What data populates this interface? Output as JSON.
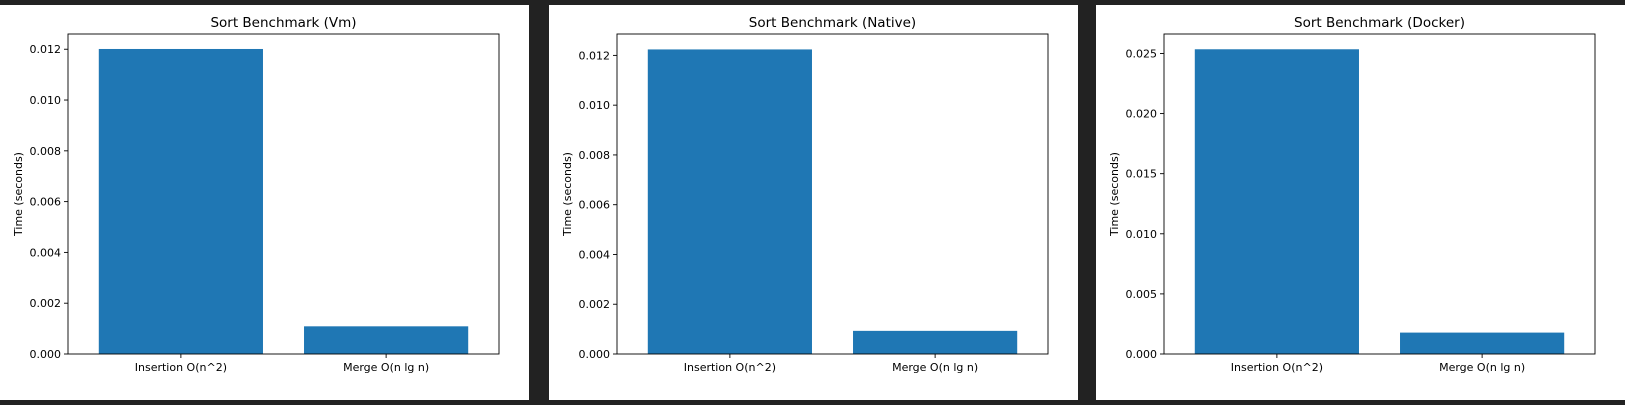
{
  "colors": {
    "bar": "#1f77b4",
    "background": "#222222"
  },
  "chart_data": [
    {
      "type": "bar",
      "title": "Sort Benchmark (Vm)",
      "xlabel": "",
      "ylabel": "Time (seconds)",
      "categories": [
        "Insertion O(n^2)",
        "Merge O(n lg n)"
      ],
      "values": [
        0.01201,
        0.00109
      ],
      "ylim": [
        0,
        0.0126
      ],
      "yticks": [
        "0.000",
        "0.002",
        "0.004",
        "0.006",
        "0.008",
        "0.010",
        "0.012"
      ],
      "ytick_values": [
        0,
        0.002,
        0.004,
        0.006,
        0.008,
        0.01,
        0.012
      ],
      "grid": false
    },
    {
      "type": "bar",
      "title": "Sort Benchmark (Native)",
      "xlabel": "",
      "ylabel": "Time (seconds)",
      "categories": [
        "Insertion O(n^2)",
        "Merge O(n lg n)"
      ],
      "values": [
        0.01224,
        0.00093
      ],
      "ylim": [
        0,
        0.01286
      ],
      "yticks": [
        "0.000",
        "0.002",
        "0.004",
        "0.006",
        "0.008",
        "0.010",
        "0.012"
      ],
      "ytick_values": [
        0,
        0.002,
        0.004,
        0.006,
        0.008,
        0.01,
        0.012
      ],
      "grid": false
    },
    {
      "type": "bar",
      "title": "Sort Benchmark (Docker)",
      "xlabel": "",
      "ylabel": "Time (seconds)",
      "categories": [
        "Insertion O(n^2)",
        "Merge O(n lg n)"
      ],
      "values": [
        0.02535,
        0.00178
      ],
      "ylim": [
        0,
        0.02662
      ],
      "yticks": [
        "0.000",
        "0.005",
        "0.010",
        "0.015",
        "0.020",
        "0.025"
      ],
      "ytick_values": [
        0,
        0.005,
        0.01,
        0.015,
        0.02,
        0.025
      ],
      "grid": false
    }
  ]
}
